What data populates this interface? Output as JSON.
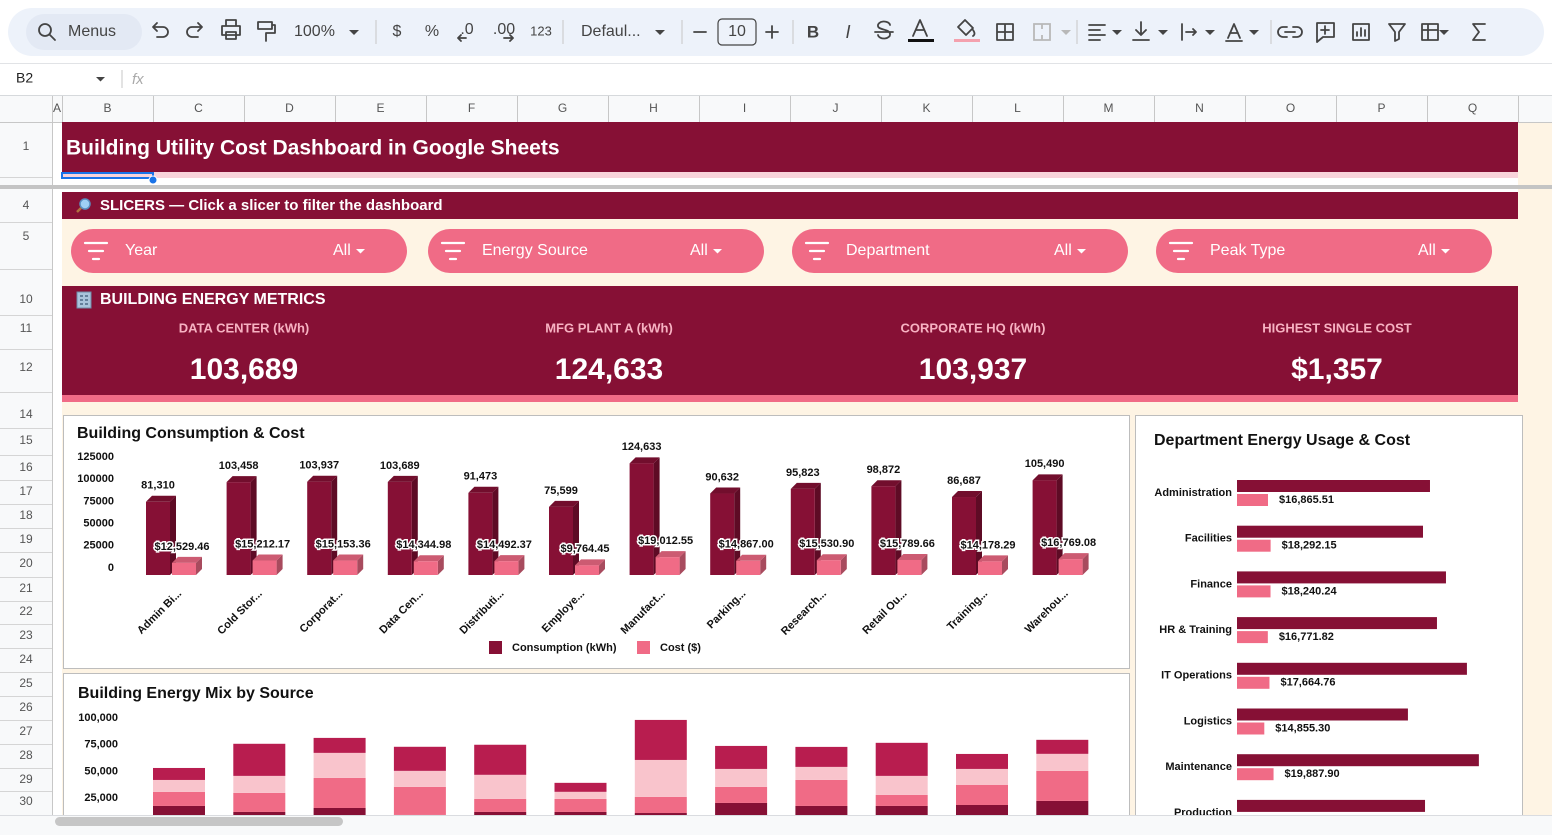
{
  "toolbar": {
    "search": "Menus",
    "zoom": "100%",
    "currency": "$",
    "percent": "%",
    "decrease_decimal": ".0",
    "increase_decimal": ".00",
    "number_format": "123",
    "font": "Defaul...",
    "font_size": "10",
    "bold": "B",
    "italic": "I"
  },
  "formula_bar": {
    "cell": "B2",
    "fx": "fx"
  },
  "columns": [
    "A",
    "B",
    "C",
    "D",
    "E",
    "F",
    "G",
    "H",
    "I",
    "J",
    "K",
    "L",
    "M",
    "N",
    "O",
    "P",
    "Q"
  ],
  "rows": [
    "1",
    "4",
    "5",
    "10",
    "11",
    "12",
    "14",
    "15",
    "16",
    "17",
    "18",
    "19",
    "20",
    "21",
    "22",
    "23",
    "24",
    "25",
    "26",
    "27",
    "28",
    "29",
    "30"
  ],
  "dashboard": {
    "title": "Building Utility Cost Dashboard in Google Sheets",
    "slicers_header": "SLICERS — Click a slicer to filter the dashboard",
    "slicers": [
      {
        "label": "Year",
        "value": "All"
      },
      {
        "label": "Energy Source",
        "value": "All"
      },
      {
        "label": "Department",
        "value": "All"
      },
      {
        "label": "Peak Type",
        "value": "All"
      }
    ],
    "metrics_header": "BUILDING ENERGY METRICS",
    "kpis": [
      {
        "label": "DATA CENTER (kWh)",
        "value": "103,689"
      },
      {
        "label": "MFG PLANT A (kWh)",
        "value": "124,633"
      },
      {
        "label": "CORPORATE HQ (kWh)",
        "value": "103,937"
      },
      {
        "label": "HIGHEST SINGLE COST",
        "value": "$1,357"
      }
    ]
  },
  "chart_data": [
    {
      "type": "bar",
      "title": "Building Consumption & Cost",
      "categories": [
        "Admin Bi...",
        "Cold Stor...",
        "Corporat...",
        "Data Cen...",
        "Distributi...",
        "Employe...",
        "Manufact...",
        "Parking...",
        "Research...",
        "Retail Ou...",
        "Training...",
        "Warehou..."
      ],
      "series": [
        {
          "name": "Consumption (kWh)",
          "color": "#861035",
          "values": [
            81310,
            103458,
            103937,
            103689,
            91473,
            75599,
            124633,
            90632,
            95823,
            98872,
            86687,
            105490
          ],
          "value_labels": [
            "81,310",
            "103,458",
            "103,937",
            "103,689",
            "91,473",
            "75,599",
            "124,633",
            "90,632",
            "95,823",
            "98,872",
            "86,687",
            "105,490"
          ]
        },
        {
          "name": "Cost ($)",
          "color": "#f06b86",
          "values": [
            12529.46,
            15212.17,
            15153.36,
            14344.98,
            14492.37,
            9764.45,
            19012.55,
            14867.0,
            15530.9,
            15789.66,
            14178.29,
            16769.08
          ],
          "value_labels": [
            "$12,529.46",
            "$15,212.17",
            "$15,153.36",
            "$14,344.98",
            "$14,492.37",
            "$9,764.45",
            "$19,012.55",
            "$14,867.00",
            "$15,530.90",
            "$15,789.66",
            "$14,178.29",
            "$16,769.08"
          ]
        }
      ],
      "ylim": [
        0,
        125000
      ],
      "yticks": [
        0,
        25000,
        50000,
        75000,
        100000,
        125000
      ],
      "legend": "bottom"
    },
    {
      "type": "horizontal_bar",
      "title": "Department Energy Usage & Cost",
      "categories": [
        "Administration",
        "Facilities",
        "Finance",
        "HR & Training",
        "IT Operations",
        "Logistics",
        "Maintenance",
        "Production"
      ],
      "series": [
        {
          "color": "#861035",
          "values": [
            105000,
            101200,
            113700,
            108800,
            125100,
            93000,
            131600,
            102300
          ]
        },
        {
          "color": "#f06b86",
          "values": [
            16865.51,
            18292.15,
            18240.24,
            16771.82,
            17664.76,
            14855.3,
            19887.9,
            null
          ],
          "value_labels": [
            "$16,865.51",
            "$18,292.15",
            "$18,240.24",
            "$16,771.82",
            "$17,664.76",
            "$14,855.30",
            "$19,887.90",
            null
          ]
        }
      ],
      "xlim": [
        0,
        145000
      ]
    },
    {
      "type": "stacked_bar",
      "title": "Building Energy Mix by Source",
      "categories": [
        null,
        null,
        null,
        null,
        null,
        null,
        null,
        null,
        null,
        null,
        null,
        null
      ],
      "series": [
        {
          "color": "#861035",
          "values": [
            17800,
            12200,
            15900,
            9400,
            12200,
            12200,
            11200,
            20600,
            17800,
            17800,
            18700,
            22500
          ]
        },
        {
          "color": "#f06b86",
          "values": [
            13100,
            17800,
            28100,
            26200,
            12200,
            12200,
            15000,
            15000,
            24300,
            10300,
            18700,
            28100
          ]
        },
        {
          "color": "#f9c4cc",
          "values": [
            11200,
            15900,
            23400,
            15000,
            22500,
            6600,
            34600,
            16800,
            12200,
            17800,
            15000,
            15900
          ]
        },
        {
          "color": "#b81d4f",
          "values": [
            11200,
            30000,
            14000,
            22500,
            28100,
            8400,
            37400,
            21500,
            18700,
            30900,
            14000,
            13100
          ]
        }
      ],
      "ylim": [
        0,
        100000
      ],
      "yticks": [
        {
          "value": 25000,
          "label": "25,000"
        },
        {
          "value": 50000,
          "label": "50,000"
        },
        {
          "value": 75000,
          "label": "75,000"
        },
        {
          "value": 100000,
          "label": "100,000"
        }
      ]
    }
  ]
}
